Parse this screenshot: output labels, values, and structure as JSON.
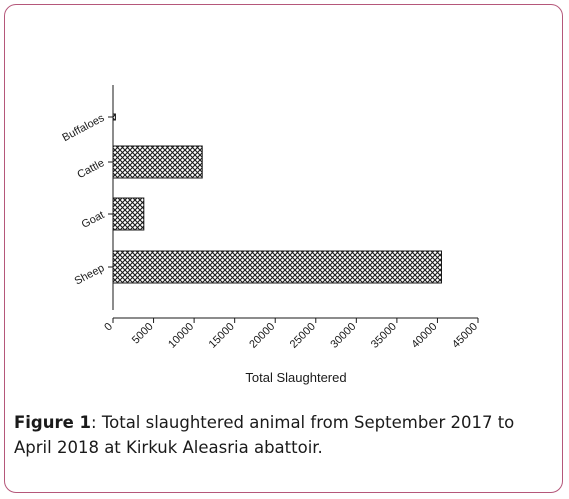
{
  "chart_data": {
    "type": "bar",
    "orientation": "horizontal",
    "categories": [
      "Buffaloes",
      "Cattle",
      "Goat",
      "Sheep"
    ],
    "values": [
      300,
      11000,
      3800,
      40500
    ],
    "xlabel": "Total Slaughtered",
    "ylabel": "",
    "xlim": [
      0,
      45000
    ],
    "xticks": [
      "0",
      "5000",
      "10000",
      "15000",
      "20000",
      "25000",
      "30000",
      "35000",
      "40000",
      "45000"
    ],
    "grid": false,
    "bar_fill": "crosshatch",
    "bar_color": "#1a1a1a"
  },
  "caption": {
    "label": "Figure 1",
    "text": ": Total slaughtered animal from September 2017 to April 2018 at Kirkuk Aleasria abattoir."
  },
  "colors": {
    "border": "#b5577a",
    "text": "#1a1a1a"
  }
}
